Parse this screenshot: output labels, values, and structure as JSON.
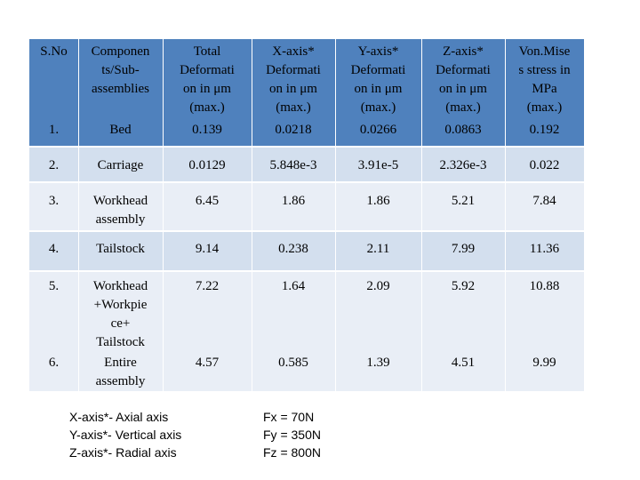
{
  "table": {
    "headers": [
      [
        "S.No"
      ],
      [
        "Componen",
        "ts/Sub-",
        "assemblies"
      ],
      [
        "Total",
        "Deformati",
        "on in μm",
        "(max.)"
      ],
      [
        "X-axis*",
        "Deformati",
        "on in μm",
        "(max.)"
      ],
      [
        "Y-axis*",
        "Deformati",
        "on in μm",
        "(max.)"
      ],
      [
        "Z-axis*",
        "Deformati",
        "on in μm",
        "(max.)"
      ],
      [
        "Von.Mise",
        "s stress in",
        "MPa",
        "(max.)"
      ]
    ],
    "rows": [
      {
        "sno": "1.",
        "component": [
          "Bed"
        ],
        "total": "0.139",
        "x": "0.0218",
        "y": "0.0266",
        "z": "0.0863",
        "vm": "0.192"
      },
      {
        "sno": "2.",
        "component": [
          "Carriage"
        ],
        "total": "0.0129",
        "x": "5.848e-3",
        "y": "3.91e-5",
        "z": "2.326e-3",
        "vm": "0.022"
      },
      {
        "sno": "3.",
        "component": [
          "Workhead",
          "assembly"
        ],
        "total": "6.45",
        "x": "1.86",
        "y": "1.86",
        "z": "5.21",
        "vm": "7.84"
      },
      {
        "sno": "4.",
        "component": [
          "Tailstock"
        ],
        "total": "9.14",
        "x": "0.238",
        "y": "2.11",
        "z": "7.99",
        "vm": "11.36"
      },
      {
        "sno": "5.",
        "component": [
          "Workhead",
          "+Workpie",
          "ce+",
          "Tailstock"
        ],
        "total": "7.22",
        "x": "1.64",
        "y": "2.09",
        "z": "5.92",
        "vm": "10.88"
      },
      {
        "sno": "6.",
        "component": [
          "Entire",
          "assembly"
        ],
        "total": "4.57",
        "x": "0.585",
        "y": "1.39",
        "z": "4.51",
        "vm": "9.99"
      }
    ]
  },
  "notes": {
    "axes": [
      "X-axis*- Axial axis",
      "Y-axis*- Vertical axis",
      "Z-axis*- Radial axis"
    ],
    "forces": [
      "Fx = 70N",
      "Fy = 350N",
      "Fz = 800N"
    ]
  }
}
